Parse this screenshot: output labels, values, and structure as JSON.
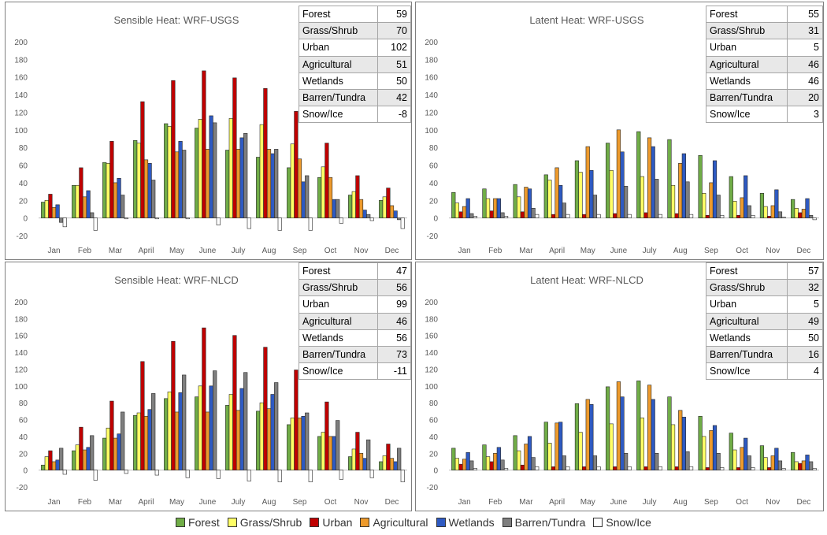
{
  "legend": [
    {
      "name": "Forest",
      "color": "#70ad47"
    },
    {
      "name": "Grass/Shrub",
      "color": "#ffff66"
    },
    {
      "name": "Urban",
      "color": "#c00000"
    },
    {
      "name": "Agricultural",
      "color": "#ed9a2c"
    },
    {
      "name": "Wetlands",
      "color": "#2e5ac2"
    },
    {
      "name": "Barren/Tundra",
      "color": "#7f7f7f"
    },
    {
      "name": "Snow/Ice",
      "color": "#ffffff"
    }
  ],
  "chart_data": [
    {
      "type": "bar",
      "title": "Sensible Heat: WRF-USGS",
      "categories": [
        "Jan",
        "Feb",
        "Mar",
        "April",
        "May",
        "June",
        "July",
        "Aug",
        "Sep",
        "Oct",
        "Nov",
        "Dec"
      ],
      "ylim": [
        -20,
        200
      ],
      "yticks": [
        -20,
        0,
        20,
        40,
        60,
        80,
        100,
        120,
        140,
        160,
        180,
        200
      ],
      "series": [
        {
          "name": "Forest",
          "values": [
            18,
            37,
            63,
            88,
            107,
            102,
            77,
            69,
            57,
            46,
            26,
            20
          ]
        },
        {
          "name": "Grass/Shrub",
          "values": [
            20,
            37,
            62,
            85,
            104,
            112,
            113,
            106,
            84,
            58,
            30,
            24
          ]
        },
        {
          "name": "Urban",
          "values": [
            27,
            57,
            87,
            132,
            156,
            167,
            159,
            147,
            121,
            85,
            48,
            34
          ]
        },
        {
          "name": "Agricultural",
          "values": [
            12,
            24,
            40,
            66,
            75,
            78,
            78,
            78,
            67,
            46,
            21,
            14
          ]
        },
        {
          "name": "Wetlands",
          "values": [
            15,
            31,
            45,
            62,
            87,
            116,
            91,
            73,
            41,
            21,
            9,
            8
          ]
        },
        {
          "name": "Barren/Tundra",
          "values": [
            -5,
            6,
            26,
            43,
            77,
            108,
            96,
            78,
            48,
            21,
            4,
            -2
          ]
        },
        {
          "name": "Snow/Ice",
          "values": [
            -10,
            -14,
            -1,
            -1,
            -1,
            -8,
            -12,
            -14,
            -14,
            -6,
            -3,
            -12
          ]
        }
      ],
      "summary": [
        {
          "name": "Forest",
          "value": "59"
        },
        {
          "name": "Grass/Shrub",
          "value": "70"
        },
        {
          "name": "Urban",
          "value": "102"
        },
        {
          "name": "Agricultural",
          "value": "51"
        },
        {
          "name": "Wetlands",
          "value": "50"
        },
        {
          "name": "Barren/Tundra",
          "value": "42"
        },
        {
          "name": "Snow/Ice",
          "value": "-8"
        }
      ]
    },
    {
      "type": "bar",
      "title": "Latent Heat: WRF-USGS",
      "categories": [
        "Jan",
        "Feb",
        "Mar",
        "April",
        "May",
        "June",
        "July",
        "Aug",
        "Sep",
        "Oct",
        "Nov",
        "Dec"
      ],
      "ylim": [
        -20,
        200
      ],
      "yticks": [
        -20,
        0,
        20,
        40,
        60,
        80,
        100,
        120,
        140,
        160,
        180,
        200
      ],
      "series": [
        {
          "name": "Forest",
          "values": [
            29,
            33,
            38,
            49,
            65,
            85,
            98,
            89,
            71,
            47,
            28,
            21
          ]
        },
        {
          "name": "Grass/Shrub",
          "values": [
            17,
            22,
            24,
            43,
            52,
            54,
            47,
            37,
            28,
            19,
            13,
            11
          ]
        },
        {
          "name": "Urban",
          "values": [
            7,
            8,
            7,
            4,
            4,
            5,
            6,
            5,
            3,
            3,
            2,
            6
          ]
        },
        {
          "name": "Agricultural",
          "values": [
            13,
            22,
            35,
            57,
            81,
            100,
            91,
            62,
            40,
            23,
            14,
            10
          ]
        },
        {
          "name": "Wetlands",
          "values": [
            22,
            22,
            33,
            37,
            54,
            75,
            81,
            73,
            65,
            48,
            32,
            22
          ]
        },
        {
          "name": "Barren/Tundra",
          "values": [
            5,
            6,
            11,
            17,
            26,
            36,
            44,
            41,
            26,
            14,
            7,
            3
          ]
        },
        {
          "name": "Snow/Ice",
          "values": [
            2,
            2,
            4,
            4,
            4,
            4,
            4,
            4,
            3,
            3,
            1,
            -2
          ]
        }
      ],
      "summary": [
        {
          "name": "Forest",
          "value": "55"
        },
        {
          "name": "Grass/Shrub",
          "value": "31"
        },
        {
          "name": "Urban",
          "value": "5"
        },
        {
          "name": "Agricultural",
          "value": "46"
        },
        {
          "name": "Wetlands",
          "value": "46"
        },
        {
          "name": "Barren/Tundra",
          "value": "20"
        },
        {
          "name": "Snow/Ice",
          "value": "3"
        }
      ]
    },
    {
      "type": "bar",
      "title": "Sensible Heat: WRF-NLCD",
      "categories": [
        "Jan",
        "Feb",
        "Mar",
        "April",
        "May",
        "June",
        "July",
        "Aug",
        "Sep",
        "Oct",
        "Nov",
        "Dec"
      ],
      "ylim": [
        -20,
        200
      ],
      "yticks": [
        -20,
        0,
        20,
        40,
        60,
        80,
        100,
        120,
        140,
        160,
        180,
        200
      ],
      "series": [
        {
          "name": "Forest",
          "values": [
            6,
            23,
            38,
            65,
            85,
            87,
            77,
            70,
            54,
            40,
            16,
            10
          ]
        },
        {
          "name": "Grass/Shrub",
          "values": [
            16,
            30,
            50,
            68,
            93,
            100,
            90,
            80,
            62,
            45,
            25,
            17
          ]
        },
        {
          "name": "Urban",
          "values": [
            23,
            51,
            82,
            129,
            153,
            169,
            160,
            146,
            119,
            81,
            45,
            31
          ]
        },
        {
          "name": "Agricultural",
          "values": [
            10,
            24,
            38,
            64,
            69,
            69,
            71,
            73,
            62,
            40,
            20,
            14
          ]
        },
        {
          "name": "Wetlands",
          "values": [
            12,
            27,
            43,
            72,
            92,
            100,
            97,
            90,
            64,
            40,
            14,
            10
          ]
        },
        {
          "name": "Barren/Tundra",
          "values": [
            26,
            41,
            69,
            91,
            113,
            118,
            116,
            104,
            68,
            59,
            36,
            26
          ]
        },
        {
          "name": "Snow/Ice",
          "values": [
            -5,
            -12,
            -4,
            -6,
            -9,
            -10,
            -13,
            -14,
            -14,
            -11,
            -9,
            -14
          ]
        }
      ],
      "summary": [
        {
          "name": "Forest",
          "value": "47"
        },
        {
          "name": "Grass/Shrub",
          "value": "56"
        },
        {
          "name": "Urban",
          "value": "99"
        },
        {
          "name": "Agricultural",
          "value": "46"
        },
        {
          "name": "Wetlands",
          "value": "56"
        },
        {
          "name": "Barren/Tundra",
          "value": "73"
        },
        {
          "name": "Snow/Ice",
          "value": "-11"
        }
      ]
    },
    {
      "type": "bar",
      "title": "Latent Heat: WRF-NLCD",
      "categories": [
        "Jan",
        "Feb",
        "Mar",
        "April",
        "May",
        "June",
        "July",
        "Aug",
        "Sep",
        "Oct",
        "Nov",
        "Dec"
      ],
      "ylim": [
        -20,
        200
      ],
      "yticks": [
        -20,
        0,
        20,
        40,
        60,
        80,
        100,
        120,
        140,
        160,
        180,
        200
      ],
      "series": [
        {
          "name": "Forest",
          "values": [
            26,
            30,
            41,
            57,
            79,
            99,
            106,
            87,
            64,
            44,
            29,
            21
          ]
        },
        {
          "name": "Grass/Shrub",
          "values": [
            14,
            16,
            23,
            32,
            45,
            55,
            62,
            54,
            40,
            24,
            15,
            10
          ]
        },
        {
          "name": "Urban",
          "values": [
            7,
            10,
            6,
            4,
            4,
            4,
            4,
            4,
            3,
            3,
            3,
            8
          ]
        },
        {
          "name": "Agricultural",
          "values": [
            13,
            20,
            31,
            56,
            84,
            105,
            101,
            71,
            47,
            27,
            17,
            11
          ]
        },
        {
          "name": "Wetlands",
          "values": [
            21,
            27,
            40,
            57,
            78,
            87,
            84,
            63,
            53,
            38,
            26,
            18
          ]
        },
        {
          "name": "Barren/Tundra",
          "values": [
            11,
            12,
            15,
            17,
            17,
            20,
            20,
            22,
            20,
            17,
            11,
            10
          ]
        },
        {
          "name": "Snow/Ice",
          "values": [
            2,
            2,
            4,
            4,
            4,
            4,
            4,
            4,
            3,
            3,
            2,
            2
          ]
        }
      ],
      "summary": [
        {
          "name": "Forest",
          "value": "57"
        },
        {
          "name": "Grass/Shrub",
          "value": "32"
        },
        {
          "name": "Urban",
          "value": "5"
        },
        {
          "name": "Agricultural",
          "value": "49"
        },
        {
          "name": "Wetlands",
          "value": "50"
        },
        {
          "name": "Barren/Tundra",
          "value": "16"
        },
        {
          "name": "Snow/Ice",
          "value": "4"
        }
      ]
    }
  ]
}
